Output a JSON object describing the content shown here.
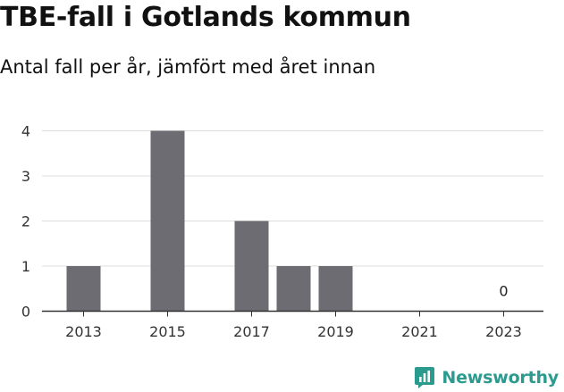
{
  "title": "TBE-fall i Gotlands kommun",
  "subtitle": "Antal fall per år, jämfört med året innan",
  "brand": {
    "name": "Newsworthy",
    "icon": "newsworthy-logo-icon",
    "color": "#2b9b8f"
  },
  "chart_data": {
    "type": "bar",
    "categories": [
      "2013",
      "2014",
      "2015",
      "2016",
      "2017",
      "2018",
      "2019",
      "2020",
      "2021",
      "2022",
      "2023"
    ],
    "values": [
      1,
      0,
      4,
      0,
      2,
      1,
      1,
      0,
      0,
      0,
      0
    ],
    "x_tick_labels": [
      "2013",
      "2015",
      "2017",
      "2019",
      "2021",
      "2023"
    ],
    "y_ticks": [
      0,
      1,
      2,
      3,
      4
    ],
    "ylim": [
      0,
      4
    ],
    "annotations": [
      {
        "category": "2023",
        "text": "0"
      }
    ],
    "bar_color": "#6d6c72",
    "grid": true,
    "xlabel": "",
    "ylabel": ""
  }
}
